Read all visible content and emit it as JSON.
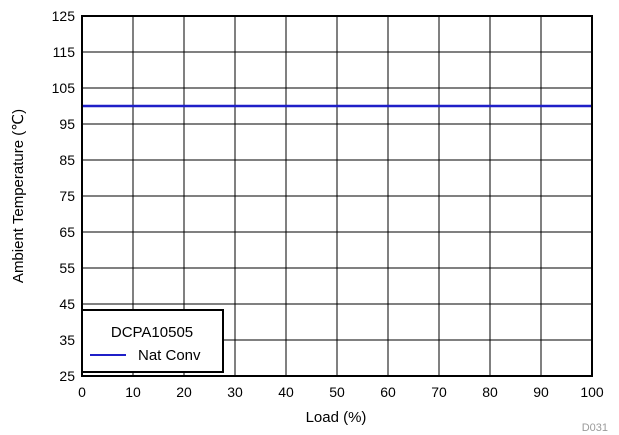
{
  "chart_data": {
    "type": "line",
    "title": "",
    "xlabel": "Load (%)",
    "ylabel": "Ambient Temperature (℃)",
    "xlim": [
      0,
      100
    ],
    "ylim": [
      25,
      125
    ],
    "x_ticks": [
      0,
      10,
      20,
      30,
      40,
      50,
      60,
      70,
      80,
      90,
      100
    ],
    "y_ticks": [
      25,
      35,
      45,
      55,
      65,
      75,
      85,
      95,
      105,
      115,
      125
    ],
    "grid": true,
    "legend": {
      "title": "DCPA10505",
      "placement": "bottom-left"
    },
    "series": [
      {
        "name": "Nat Conv",
        "color": "#1f1fc8",
        "x": [
          0,
          100
        ],
        "y": [
          100,
          100
        ]
      }
    ],
    "figure_id": "D031"
  }
}
